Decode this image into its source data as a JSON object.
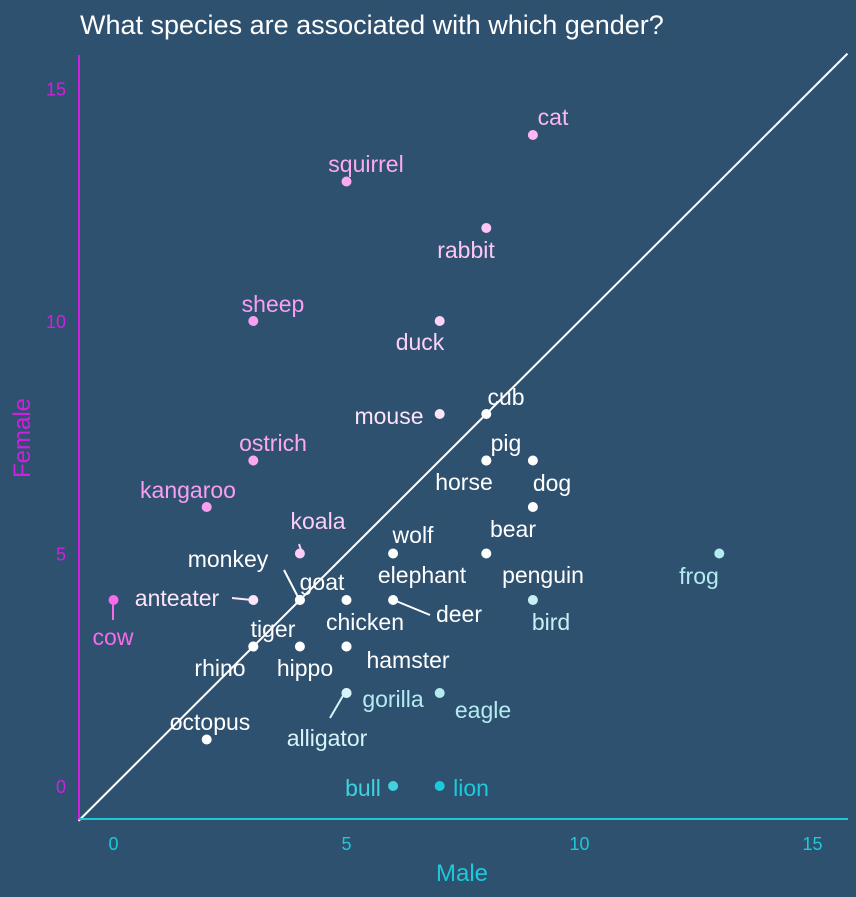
{
  "colors": {
    "background": "#2e5170",
    "x_axis": "#1ec8d8",
    "y_axis": "#d21ee0",
    "identity_line": "#ffffff"
  },
  "chart_data": {
    "type": "scatter",
    "title": "What species are associated with which gender?",
    "xlabel": "Male",
    "ylabel": "Female",
    "xlim": [
      -0.75,
      15.75
    ],
    "ylim": [
      -0.7,
      15.8
    ],
    "xticks": [
      "0",
      "5",
      "10",
      "15"
    ],
    "yticks": [
      "0",
      "5",
      "10",
      "15"
    ],
    "grid": false,
    "reference_line": "y = x",
    "points": [
      {
        "label": "cat",
        "x": 9,
        "y": 14,
        "color": "#fdb6f3"
      },
      {
        "label": "squirrel",
        "x": 5,
        "y": 13,
        "color": "#fbaaf1"
      },
      {
        "label": "rabbit",
        "x": 8,
        "y": 12,
        "color": "#fdc6f5"
      },
      {
        "label": "sheep",
        "x": 3,
        "y": 10,
        "color": "#fa9eef"
      },
      {
        "label": "duck",
        "x": 7,
        "y": 10,
        "color": "#fdd2f6"
      },
      {
        "label": "cub",
        "x": 8,
        "y": 8,
        "color": "#ffffff"
      },
      {
        "label": "mouse",
        "x": 7,
        "y": 8,
        "color": "#fde4f8"
      },
      {
        "label": "ostrich",
        "x": 3,
        "y": 7,
        "color": "#fba8f0"
      },
      {
        "label": "pig",
        "x": 8,
        "y": 7,
        "color": "#ffffff"
      },
      {
        "label": "horse",
        "x": 8,
        "y": 7,
        "color": "#ffffff"
      },
      {
        "label": "dog",
        "x": 9,
        "y": 7,
        "color": "#ffffff"
      },
      {
        "label": "kangaroo",
        "x": 2,
        "y": 6,
        "color": "#fa9ef0"
      },
      {
        "label": "bear",
        "x": 9,
        "y": 6,
        "color": "#ffffff"
      },
      {
        "label": "koala",
        "x": 4,
        "y": 5,
        "color": "#fdcdf6"
      },
      {
        "label": "wolf",
        "x": 6,
        "y": 5,
        "color": "#ffffff"
      },
      {
        "label": "penguin",
        "x": 8,
        "y": 5,
        "color": "#ffffff"
      },
      {
        "label": "frog",
        "x": 13,
        "y": 5,
        "color": "#b3ecf0"
      },
      {
        "label": "monkey",
        "x": 4,
        "y": 4,
        "color": "#ffffff"
      },
      {
        "label": "goat",
        "x": 4,
        "y": 4,
        "color": "#ffffff"
      },
      {
        "label": "anteater",
        "x": 3,
        "y": 4,
        "color": "#fde4f8"
      },
      {
        "label": "cow",
        "x": 0,
        "y": 4,
        "color": "#f46ce8"
      },
      {
        "label": "elephant",
        "x": 5,
        "y": 4,
        "color": "#ffffff"
      },
      {
        "label": "deer",
        "x": 6,
        "y": 4,
        "color": "#ffffff"
      },
      {
        "label": "bird",
        "x": 9,
        "y": 4,
        "color": "#c6f1f4"
      },
      {
        "label": "tiger",
        "x": 3,
        "y": 3,
        "color": "#ffffff"
      },
      {
        "label": "rhino",
        "x": 3,
        "y": 3,
        "color": "#ffffff"
      },
      {
        "label": "hippo",
        "x": 4,
        "y": 3,
        "color": "#ffffff"
      },
      {
        "label": "chicken",
        "x": 5,
        "y": 3,
        "color": "#ffffff"
      },
      {
        "label": "hamster",
        "x": 5,
        "y": 3,
        "color": "#ffffff"
      },
      {
        "label": "gorilla",
        "x": 5,
        "y": 2,
        "color": "#b6ecf1"
      },
      {
        "label": "alligator",
        "x": 5,
        "y": 2,
        "color": "#d7f4f7"
      },
      {
        "label": "eagle",
        "x": 7,
        "y": 2,
        "color": "#b3ecf0"
      },
      {
        "label": "octopus",
        "x": 2,
        "y": 1,
        "color": "#ffffff"
      },
      {
        "label": "bull",
        "x": 6,
        "y": 0,
        "color": "#3fd2df"
      },
      {
        "label": "lion",
        "x": 7,
        "y": 0,
        "color": "#1ccbdb"
      }
    ]
  }
}
